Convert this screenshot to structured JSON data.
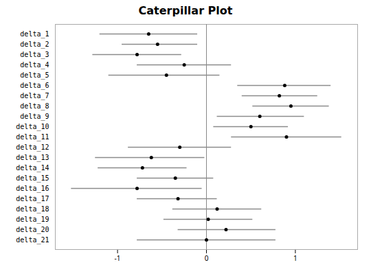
{
  "chart_data": {
    "type": "dot",
    "title": "Caterpillar Plot",
    "orientation": "horizontal",
    "categories": [
      "delta_1",
      "delta_2",
      "delta_3",
      "delta_4",
      "delta_5",
      "delta_6",
      "delta_7",
      "delta_8",
      "delta_9",
      "delta_10",
      "delta_11",
      "delta_12",
      "delta_13",
      "delta_14",
      "delta_15",
      "delta_16",
      "delta_17",
      "delta_18",
      "delta_19",
      "delta_20",
      "delta_21"
    ],
    "values": [
      -0.65,
      -0.55,
      -0.78,
      -0.25,
      -0.45,
      0.88,
      0.82,
      0.95,
      0.6,
      0.5,
      0.9,
      -0.3,
      -0.62,
      -0.72,
      -0.35,
      -0.78,
      -0.32,
      0.12,
      0.02,
      0.22,
      0.0
    ],
    "ci_lower": [
      -1.2,
      -0.95,
      -1.28,
      -0.78,
      -1.1,
      0.35,
      0.4,
      0.52,
      0.12,
      0.08,
      0.28,
      -0.88,
      -1.25,
      -1.22,
      -0.78,
      -1.52,
      -0.78,
      -0.38,
      -0.48,
      -0.32,
      -0.78
    ],
    "ci_upper": [
      -0.1,
      -0.1,
      -0.28,
      0.28,
      0.15,
      1.4,
      1.25,
      1.38,
      1.1,
      0.92,
      1.52,
      0.28,
      -0.02,
      -0.22,
      0.08,
      -0.05,
      0.12,
      0.62,
      0.52,
      0.78,
      0.78
    ],
    "vline": 0,
    "xlim": [
      -1.7,
      1.7
    ],
    "xticks": [
      -1,
      0,
      1
    ],
    "grid": false
  }
}
